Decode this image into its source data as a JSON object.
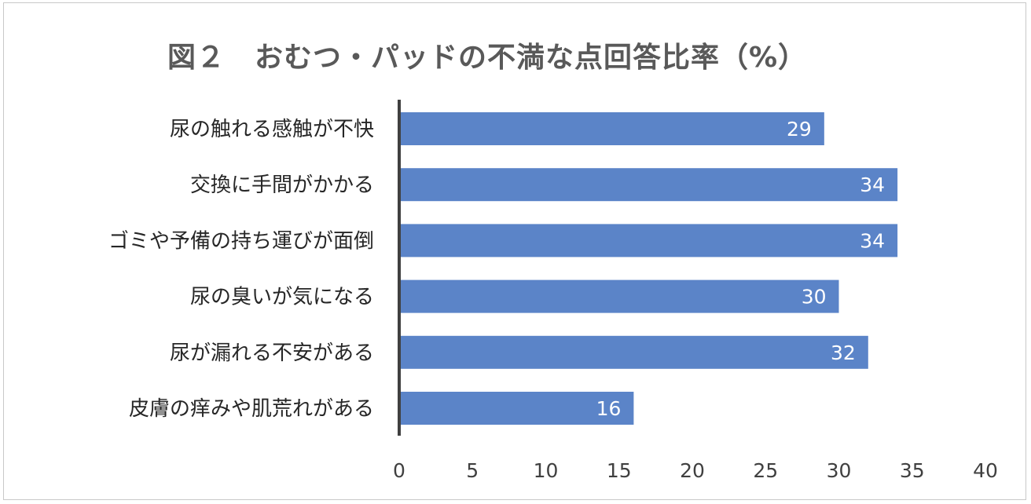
{
  "chart_data": {
    "type": "bar",
    "orientation": "horizontal",
    "title": "図２　おむつ・パッドの不満な点回答比率（%）",
    "categories": [
      "尿の触れる感触が不快",
      "交換に手間がかかる",
      "ゴミや予備の持ち運びが面倒",
      "尿の臭いが気になる",
      "尿が漏れる不安がある",
      "皮膚の痒みや肌荒れがある"
    ],
    "values": [
      29,
      34,
      34,
      30,
      32,
      16
    ],
    "xlim": [
      0,
      40
    ],
    "xticks": [
      0,
      5,
      10,
      15,
      20,
      25,
      30,
      35,
      40
    ],
    "grid": false,
    "legend": "none",
    "data_labels": true,
    "colors": {
      "bar": "#5b84c8",
      "axis": "#404040",
      "title": "#595959"
    }
  }
}
